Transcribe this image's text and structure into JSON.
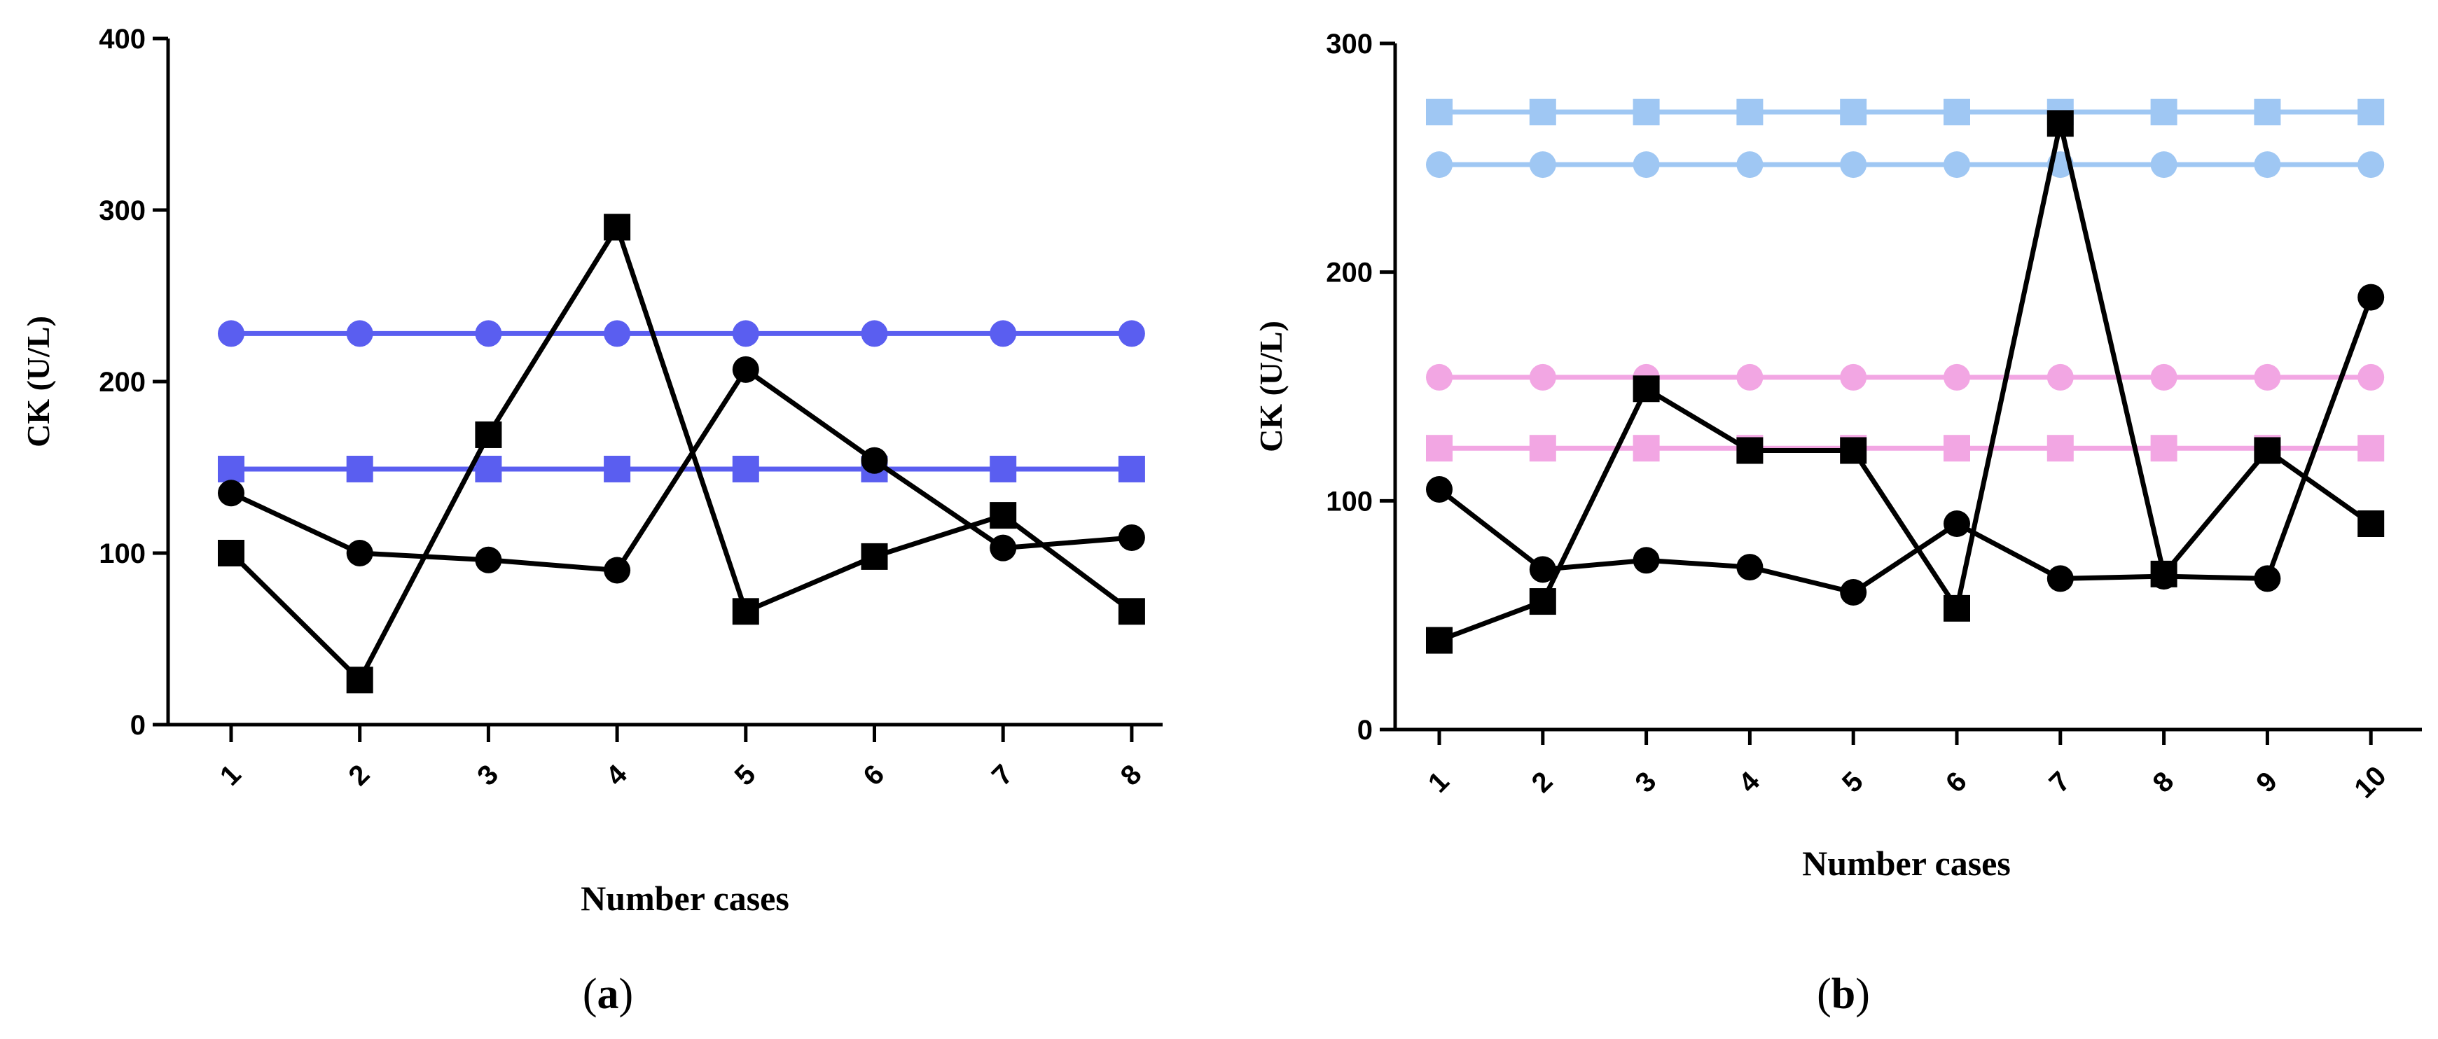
{
  "chart_data": [
    {
      "type": "line",
      "panel_label": "a",
      "caption": "(a)",
      "xlabel": "Number cases",
      "ylabel": "CK (U/L)",
      "categories": [
        "1",
        "2",
        "3",
        "4",
        "5",
        "6",
        "7",
        "8"
      ],
      "ylim": [
        0,
        400
      ],
      "yticks": [
        0,
        100,
        200,
        300,
        400
      ],
      "grid": false,
      "series": [
        {
          "name": "series-square-black",
          "marker": "square",
          "color": "#000000",
          "values": [
            100,
            26,
            169,
            290,
            66,
            98,
            122,
            66
          ]
        },
        {
          "name": "series-circle-black",
          "marker": "circle",
          "color": "#000000",
          "values": [
            135,
            100,
            96,
            90,
            207,
            154,
            103,
            109
          ]
        },
        {
          "name": "reference-circle-blue",
          "marker": "circle",
          "color": "#5a5ef0",
          "values": [
            228,
            228,
            228,
            228,
            228,
            228,
            228,
            228
          ]
        },
        {
          "name": "reference-square-blue",
          "marker": "square",
          "color": "#5a5ef0",
          "values": [
            149,
            149,
            149,
            149,
            149,
            149,
            149,
            149
          ]
        }
      ]
    },
    {
      "type": "line",
      "panel_label": "b",
      "caption": "(b)",
      "xlabel": "Number cases",
      "ylabel": "CK (U/L)",
      "categories": [
        "1",
        "2",
        "3",
        "4",
        "5",
        "6",
        "7",
        "8",
        "9",
        "10"
      ],
      "ylim": [
        0,
        300
      ],
      "yticks": [
        0,
        100,
        200,
        300
      ],
      "grid": false,
      "series": [
        {
          "name": "series-square-black",
          "marker": "square",
          "color": "#000000",
          "values": [
            39,
            56,
            149,
            122,
            122,
            53,
            265,
            68,
            122,
            90
          ]
        },
        {
          "name": "series-circle-black",
          "marker": "circle",
          "color": "#000000",
          "values": [
            105,
            70,
            74,
            71,
            60,
            90,
            66,
            67,
            66,
            189
          ]
        },
        {
          "name": "reference-square-lightblue",
          "marker": "square",
          "color": "#9fc7f3",
          "values": [
            270,
            270,
            270,
            270,
            270,
            270,
            270,
            270,
            270,
            270
          ]
        },
        {
          "name": "reference-circle-lightblue",
          "marker": "circle",
          "color": "#9fc7f3",
          "values": [
            247,
            247,
            247,
            247,
            247,
            247,
            247,
            247,
            247,
            247
          ]
        },
        {
          "name": "reference-circle-pink",
          "marker": "circle",
          "color": "#f2a6e3",
          "values": [
            154,
            154,
            154,
            154,
            154,
            154,
            154,
            154,
            154,
            154
          ]
        },
        {
          "name": "reference-square-pink",
          "marker": "square",
          "color": "#f2a6e3",
          "values": [
            123,
            123,
            123,
            123,
            123,
            123,
            123,
            123,
            123,
            123
          ]
        }
      ]
    }
  ]
}
